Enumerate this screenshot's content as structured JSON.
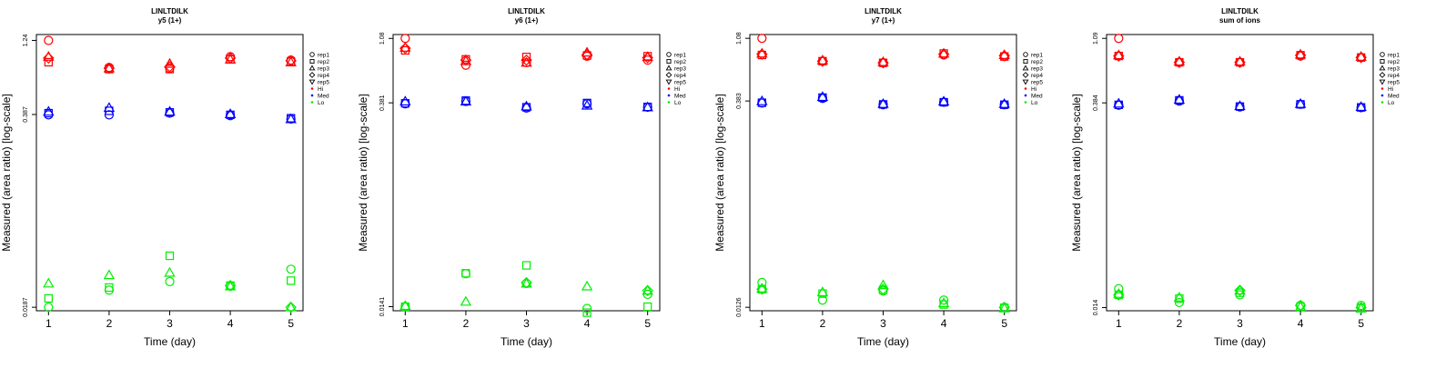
{
  "colors": {
    "hi": "#ff0000",
    "med": "#0000ff",
    "lo": "#00ee00",
    "axis": "#000000"
  },
  "legend": {
    "entries": [
      {
        "label": "rep1",
        "symbol": "circle",
        "color": "#000000"
      },
      {
        "label": "rep2",
        "symbol": "square",
        "color": "#000000"
      },
      {
        "label": "rep3",
        "symbol": "triangle",
        "color": "#000000"
      },
      {
        "label": "rep4",
        "symbol": "diamond",
        "color": "#000000"
      },
      {
        "label": "rep5",
        "symbol": "triangle-down",
        "color": "#000000"
      },
      {
        "label": "Hi",
        "symbol": "dot",
        "color": "#ff0000"
      },
      {
        "label": "Med",
        "symbol": "dot",
        "color": "#0000ff"
      },
      {
        "label": "Lo",
        "symbol": "dot",
        "color": "#00ee00"
      }
    ]
  },
  "chart_data": [
    {
      "type": "scatter",
      "title": "LINLTDILK",
      "subtitle": "y5 (1+)",
      "xlabel": "Time (day)",
      "ylabel": "Measured (area ratio) [log-scale]",
      "yscale": "log",
      "xlim": [
        0.8,
        5.2
      ],
      "ylim": [
        0.0177,
        1.36
      ],
      "xticks": [
        1,
        2,
        3,
        4,
        5
      ],
      "yticks": [
        0.0187,
        0.387,
        1.24
      ],
      "ytick_labels": [
        "0.0187",
        "0.387",
        "1.24"
      ],
      "series": [
        {
          "name": "rep1-Hi",
          "rep": "rep1",
          "level": "Hi",
          "symbol": "circle",
          "x": [
            1,
            2,
            3,
            4,
            5
          ],
          "y": [
            1.24,
            0.81,
            0.8,
            0.96,
            0.91
          ]
        },
        {
          "name": "rep2-Hi",
          "rep": "rep2",
          "level": "Hi",
          "symbol": "square",
          "x": [
            1,
            2,
            3,
            4,
            5
          ],
          "y": [
            0.88,
            0.79,
            0.79,
            0.92,
            0.89
          ]
        },
        {
          "name": "rep3-Hi",
          "rep": "rep3",
          "level": "Hi",
          "symbol": "triangle",
          "x": [
            1,
            2,
            3,
            4,
            5
          ],
          "y": [
            0.96,
            0.8,
            0.86,
            0.92,
            0.88
          ]
        },
        {
          "name": "rep4-Hi",
          "rep": "rep4",
          "level": "Hi",
          "symbol": "diamond",
          "x": [
            1,
            2,
            3,
            4,
            5
          ],
          "y": [
            0.94,
            0.8,
            0.82,
            0.94,
            0.9
          ]
        },
        {
          "name": "rep1-Med",
          "rep": "rep1",
          "level": "Med",
          "symbol": "circle",
          "x": [
            1,
            2,
            3,
            4,
            5
          ],
          "y": [
            0.385,
            0.385,
            0.395,
            0.38,
            0.36
          ]
        },
        {
          "name": "rep2-Med",
          "rep": "rep2",
          "level": "Med",
          "symbol": "square",
          "x": [
            1,
            2,
            3,
            4,
            5
          ],
          "y": [
            0.395,
            0.41,
            0.4,
            0.385,
            0.365
          ]
        },
        {
          "name": "rep3-Med",
          "rep": "rep3",
          "level": "Med",
          "symbol": "triangle",
          "x": [
            1,
            2,
            3,
            4,
            5
          ],
          "y": [
            0.405,
            0.43,
            0.405,
            0.39,
            0.36
          ]
        },
        {
          "name": "rep1-Lo",
          "rep": "rep1",
          "level": "Lo",
          "symbol": "circle",
          "x": [
            1,
            2,
            3,
            4,
            5
          ],
          "y": [
            0.0187,
            0.0245,
            0.028,
            0.026,
            0.034
          ]
        },
        {
          "name": "rep2-Lo",
          "rep": "rep2",
          "level": "Lo",
          "symbol": "square",
          "x": [
            1,
            2,
            3,
            4,
            5
          ],
          "y": [
            0.0215,
            0.0255,
            0.042,
            0.0263,
            0.0284
          ]
        },
        {
          "name": "rep3-Lo",
          "rep": "rep3",
          "level": "Lo",
          "symbol": "triangle",
          "x": [
            1,
            2,
            3,
            4,
            5
          ],
          "y": [
            0.0272,
            0.031,
            0.0322,
            0.026,
            0.0187
          ]
        },
        {
          "name": "rep4-Lo",
          "rep": "rep4",
          "level": "Lo",
          "symbol": "diamond",
          "x": [
            4,
            5
          ],
          "y": [
            0.0263,
            0.0187
          ]
        }
      ]
    },
    {
      "type": "scatter",
      "title": "LINLTDILK",
      "subtitle": "y6 (1+)",
      "xlabel": "Time (day)",
      "ylabel": "Measured (area ratio) [log-scale]",
      "yscale": "log",
      "xlim": [
        0.8,
        5.2
      ],
      "ylim": [
        0.0132,
        1.15
      ],
      "xticks": [
        1,
        2,
        3,
        4,
        5
      ],
      "yticks": [
        0.0141,
        0.381,
        1.08
      ],
      "ytick_labels": [
        "0.0141",
        "0.381",
        "1.08"
      ],
      "series": [
        {
          "name": "rep1-Hi",
          "rep": "rep1",
          "level": "Hi",
          "symbol": "circle",
          "x": [
            1,
            2,
            3,
            4,
            5
          ],
          "y": [
            1.08,
            0.7,
            0.73,
            0.81,
            0.76
          ]
        },
        {
          "name": "rep2-Hi",
          "rep": "rep2",
          "level": "Hi",
          "symbol": "square",
          "x": [
            1,
            2,
            3,
            4,
            5
          ],
          "y": [
            0.89,
            0.77,
            0.8,
            0.82,
            0.81
          ]
        },
        {
          "name": "rep3-Hi",
          "rep": "rep3",
          "level": "Hi",
          "symbol": "triangle",
          "x": [
            1,
            2,
            3,
            4,
            5
          ],
          "y": [
            0.93,
            0.75,
            0.73,
            0.86,
            0.8
          ]
        },
        {
          "name": "rep4-Hi",
          "rep": "rep4",
          "level": "Hi",
          "symbol": "diamond",
          "x": [
            1,
            2,
            3,
            4,
            5
          ],
          "y": [
            0.92,
            0.76,
            0.76,
            0.83,
            0.79
          ]
        },
        {
          "name": "rep1-Med",
          "rep": "rep1",
          "level": "Med",
          "symbol": "circle",
          "x": [
            1,
            2,
            3,
            4,
            5
          ],
          "y": [
            0.375,
            0.39,
            0.35,
            0.375,
            0.355
          ]
        },
        {
          "name": "rep2-Med",
          "rep": "rep2",
          "level": "Med",
          "symbol": "square",
          "x": [
            1,
            2,
            3,
            4,
            5
          ],
          "y": [
            0.378,
            0.395,
            0.355,
            0.38,
            0.357
          ]
        },
        {
          "name": "rep3-Med",
          "rep": "rep3",
          "level": "Med",
          "symbol": "triangle",
          "x": [
            1,
            2,
            3,
            4,
            5
          ],
          "y": [
            0.39,
            0.39,
            0.36,
            0.365,
            0.355
          ]
        },
        {
          "name": "rep1-Lo",
          "rep": "rep1",
          "level": "Lo",
          "symbol": "circle",
          "x": [
            1,
            2,
            3,
            4,
            5
          ],
          "y": [
            0.0141,
            0.024,
            0.0205,
            0.0137,
            0.0172
          ]
        },
        {
          "name": "rep2-Lo",
          "rep": "rep2",
          "level": "Lo",
          "symbol": "square",
          "x": [
            1,
            2,
            3,
            4,
            5
          ],
          "y": [
            0.0141,
            0.0242,
            0.0275,
            0.0128,
            0.0141
          ]
        },
        {
          "name": "rep3-Lo",
          "rep": "rep3",
          "level": "Lo",
          "symbol": "triangle",
          "x": [
            1,
            2,
            3,
            4,
            5
          ],
          "y": [
            0.0143,
            0.0153,
            0.0205,
            0.0196,
            0.0183
          ]
        },
        {
          "name": "rep4-Lo",
          "rep": "rep4",
          "level": "Lo",
          "symbol": "diamond",
          "x": [
            3,
            5
          ],
          "y": [
            0.0208,
            0.0183
          ]
        }
      ]
    },
    {
      "type": "scatter",
      "title": "LINLTDILK",
      "subtitle": "y7 (1+)",
      "xlabel": "Time (day)",
      "ylabel": "Measured (area ratio) [log-scale]",
      "yscale": "log",
      "xlim": [
        0.8,
        5.2
      ],
      "ylim": [
        0.0119,
        1.15
      ],
      "xticks": [
        1,
        2,
        3,
        4,
        5
      ],
      "yticks": [
        0.0126,
        0.383,
        1.08
      ],
      "ytick_labels": [
        "0.0126",
        "0.383",
        "1.08"
      ],
      "series": [
        {
          "name": "rep1-Hi",
          "rep": "rep1",
          "level": "Hi",
          "symbol": "circle",
          "x": [
            1,
            2,
            3,
            4,
            5
          ],
          "y": [
            1.08,
            0.74,
            0.72,
            0.82,
            0.8
          ]
        },
        {
          "name": "rep2-Hi",
          "rep": "rep2",
          "level": "Hi",
          "symbol": "square",
          "x": [
            1,
            2,
            3,
            4,
            5
          ],
          "y": [
            0.82,
            0.74,
            0.72,
            0.84,
            0.8
          ]
        },
        {
          "name": "rep3-Hi",
          "rep": "rep3",
          "level": "Hi",
          "symbol": "triangle",
          "x": [
            1,
            2,
            3,
            4,
            5
          ],
          "y": [
            0.84,
            0.75,
            0.73,
            0.84,
            0.82
          ]
        },
        {
          "name": "rep4-Hi",
          "rep": "rep4",
          "level": "Hi",
          "symbol": "diamond",
          "x": [
            1,
            2,
            3,
            4,
            5
          ],
          "y": [
            0.83,
            0.74,
            0.72,
            0.83,
            0.81
          ]
        },
        {
          "name": "rep1-Med",
          "rep": "rep1",
          "level": "Med",
          "symbol": "circle",
          "x": [
            1,
            2,
            3,
            4,
            5
          ],
          "y": [
            0.37,
            0.4,
            0.36,
            0.375,
            0.36
          ]
        },
        {
          "name": "rep2-Med",
          "rep": "rep2",
          "level": "Med",
          "symbol": "square",
          "x": [
            1,
            2,
            3,
            4,
            5
          ],
          "y": [
            0.372,
            0.405,
            0.362,
            0.375,
            0.36
          ]
        },
        {
          "name": "rep3-Med",
          "rep": "rep3",
          "level": "Med",
          "symbol": "triangle",
          "x": [
            1,
            2,
            3,
            4,
            5
          ],
          "y": [
            0.382,
            0.41,
            0.365,
            0.38,
            0.365
          ]
        },
        {
          "name": "rep1-Lo",
          "rep": "rep1",
          "level": "Lo",
          "symbol": "circle",
          "x": [
            1,
            2,
            3,
            4,
            5
          ],
          "y": [
            0.019,
            0.0142,
            0.0165,
            0.0142,
            0.0126
          ]
        },
        {
          "name": "rep2-Lo",
          "rep": "rep2",
          "level": "Lo",
          "symbol": "square",
          "x": [
            1,
            2,
            3,
            4,
            5
          ],
          "y": [
            0.017,
            0.0158,
            0.0168,
            0.0132,
            0.0125
          ]
        },
        {
          "name": "rep3-Lo",
          "rep": "rep3",
          "level": "Lo",
          "symbol": "triangle",
          "x": [
            1,
            2,
            3,
            4,
            5
          ],
          "y": [
            0.0172,
            0.0162,
            0.0182,
            0.0135,
            0.0124
          ]
        },
        {
          "name": "rep4-Lo",
          "rep": "rep4",
          "level": "Lo",
          "symbol": "diamond",
          "x": [
            1,
            3,
            5
          ],
          "y": [
            0.017,
            0.017,
            0.0126
          ]
        }
      ]
    },
    {
      "type": "scatter",
      "title": "LINLTDILK",
      "subtitle": "sum of ions",
      "xlabel": "Time (day)",
      "ylabel": "Measured (area ratio) [log-scale]",
      "yscale": "log",
      "xlim": [
        0.8,
        5.2
      ],
      "ylim": [
        0.0133,
        1.16
      ],
      "xticks": [
        1,
        2,
        3,
        4,
        5
      ],
      "yticks": [
        0.014,
        0.384,
        1.09
      ],
      "ytick_labels": [
        "0.014",
        "0.384",
        "1.09"
      ],
      "series": [
        {
          "name": "rep1-Hi",
          "rep": "rep1",
          "level": "Hi",
          "symbol": "circle",
          "x": [
            1,
            2,
            3,
            4,
            5
          ],
          "y": [
            1.09,
            0.74,
            0.74,
            0.82,
            0.8
          ]
        },
        {
          "name": "rep2-Hi",
          "rep": "rep2",
          "level": "Hi",
          "symbol": "square",
          "x": [
            1,
            2,
            3,
            4,
            5
          ],
          "y": [
            0.82,
            0.74,
            0.74,
            0.83,
            0.8
          ]
        },
        {
          "name": "rep3-Hi",
          "rep": "rep3",
          "level": "Hi",
          "symbol": "triangle",
          "x": [
            1,
            2,
            3,
            4,
            5
          ],
          "y": [
            0.83,
            0.75,
            0.75,
            0.84,
            0.81
          ]
        },
        {
          "name": "rep4-Hi",
          "rep": "rep4",
          "level": "Hi",
          "symbol": "diamond",
          "x": [
            1,
            2,
            3,
            4,
            5
          ],
          "y": [
            0.82,
            0.74,
            0.74,
            0.83,
            0.8
          ]
        },
        {
          "name": "rep1-Med",
          "rep": "rep1",
          "level": "Med",
          "symbol": "circle",
          "x": [
            1,
            2,
            3,
            4,
            5
          ],
          "y": [
            0.37,
            0.395,
            0.36,
            0.375,
            0.355
          ]
        },
        {
          "name": "rep2-Med",
          "rep": "rep2",
          "level": "Med",
          "symbol": "square",
          "x": [
            1,
            2,
            3,
            4,
            5
          ],
          "y": [
            0.372,
            0.4,
            0.362,
            0.375,
            0.357
          ]
        },
        {
          "name": "rep3-Med",
          "rep": "rep3",
          "level": "Med",
          "symbol": "triangle",
          "x": [
            1,
            2,
            3,
            4,
            5
          ],
          "y": [
            0.38,
            0.405,
            0.365,
            0.378,
            0.36
          ]
        },
        {
          "name": "rep1-Lo",
          "rep": "rep1",
          "level": "Lo",
          "symbol": "circle",
          "x": [
            1,
            2,
            3,
            4,
            5
          ],
          "y": [
            0.019,
            0.0152,
            0.0172,
            0.0145,
            0.0145
          ]
        },
        {
          "name": "rep2-Lo",
          "rep": "rep2",
          "level": "Lo",
          "symbol": "square",
          "x": [
            1,
            2,
            3,
            4,
            5
          ],
          "y": [
            0.0172,
            0.0162,
            0.0178,
            0.0142,
            0.014
          ]
        },
        {
          "name": "rep3-Lo",
          "rep": "rep3",
          "level": "Lo",
          "symbol": "triangle",
          "x": [
            1,
            2,
            3,
            4,
            5
          ],
          "y": [
            0.0175,
            0.0165,
            0.0185,
            0.0142,
            0.0138
          ]
        },
        {
          "name": "rep4-Lo",
          "rep": "rep4",
          "level": "Lo",
          "symbol": "diamond",
          "x": [
            1,
            3,
            4,
            5
          ],
          "y": [
            0.0172,
            0.0185,
            0.0145,
            0.014
          ]
        }
      ]
    }
  ]
}
